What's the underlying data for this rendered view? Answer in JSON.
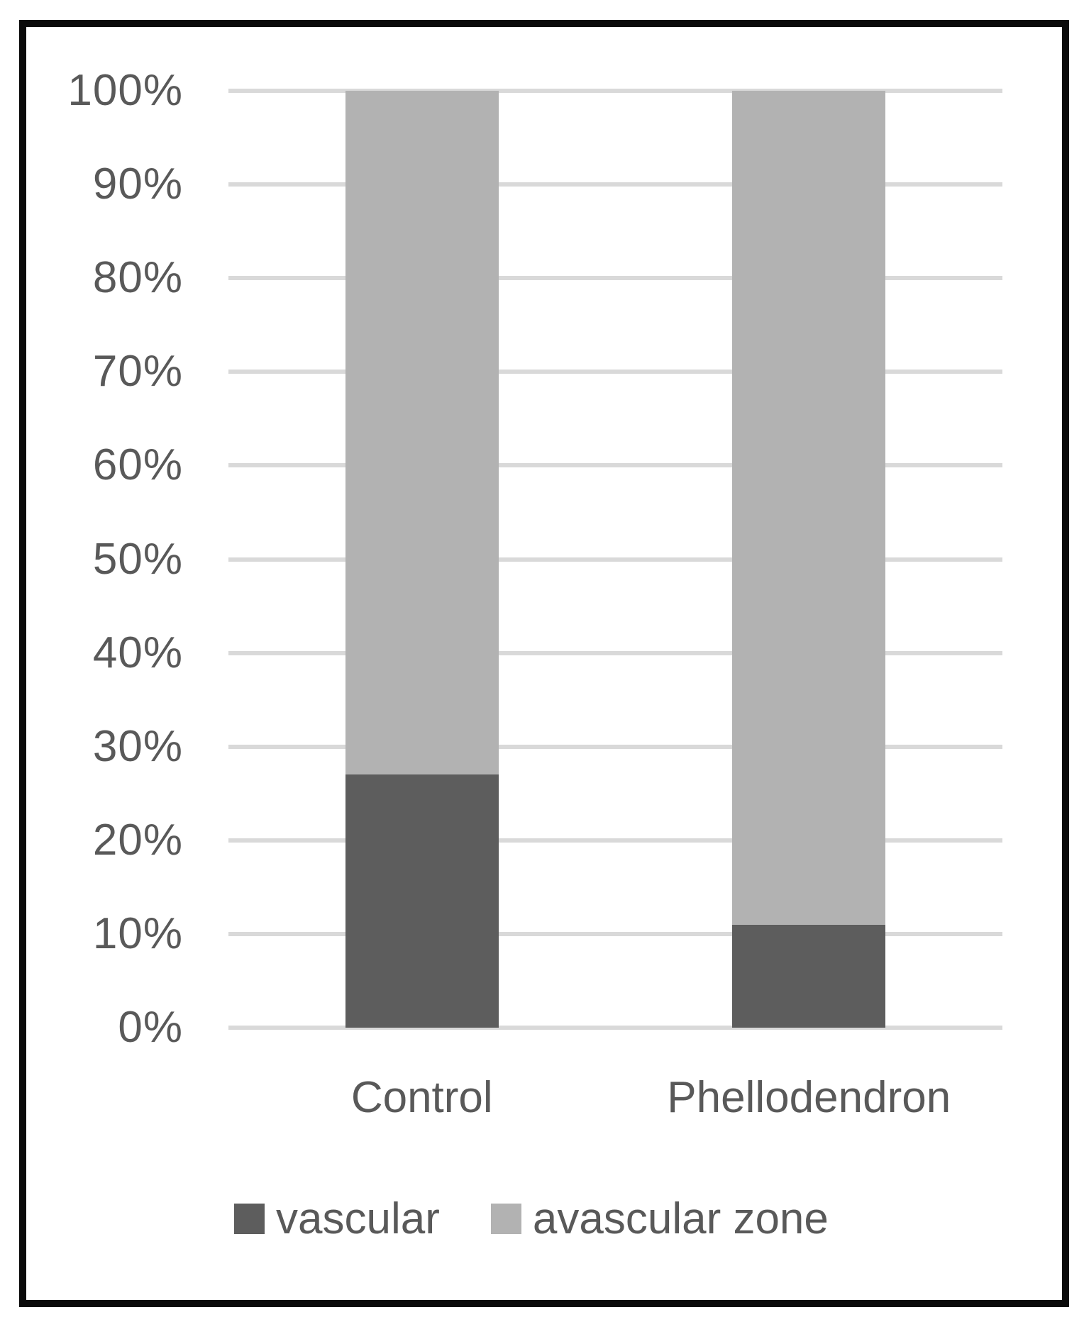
{
  "chart_data": {
    "type": "bar",
    "subtype": "stacked-100-percent",
    "title": "",
    "xlabel": "",
    "ylabel": "",
    "categories": [
      "Control",
      "Phellodendron"
    ],
    "series": [
      {
        "name": "vascular",
        "color": "#5d5d5d",
        "values": [
          27,
          11
        ]
      },
      {
        "name": "avascular zone",
        "color": "#b2b2b2",
        "values": [
          73,
          89
        ]
      }
    ],
    "ylim": [
      0,
      100
    ],
    "ytick_step": 10,
    "ytick_labels": [
      "0%",
      "10%",
      "20%",
      "30%",
      "40%",
      "50%",
      "60%",
      "70%",
      "80%",
      "90%",
      "100%"
    ],
    "grid": "horizontal",
    "legend_position": "bottom"
  },
  "colors": {
    "gridline": "#d9d9d9",
    "axis_text": "#595959",
    "frame": "#0a0a0a",
    "background": "#ffffff"
  }
}
